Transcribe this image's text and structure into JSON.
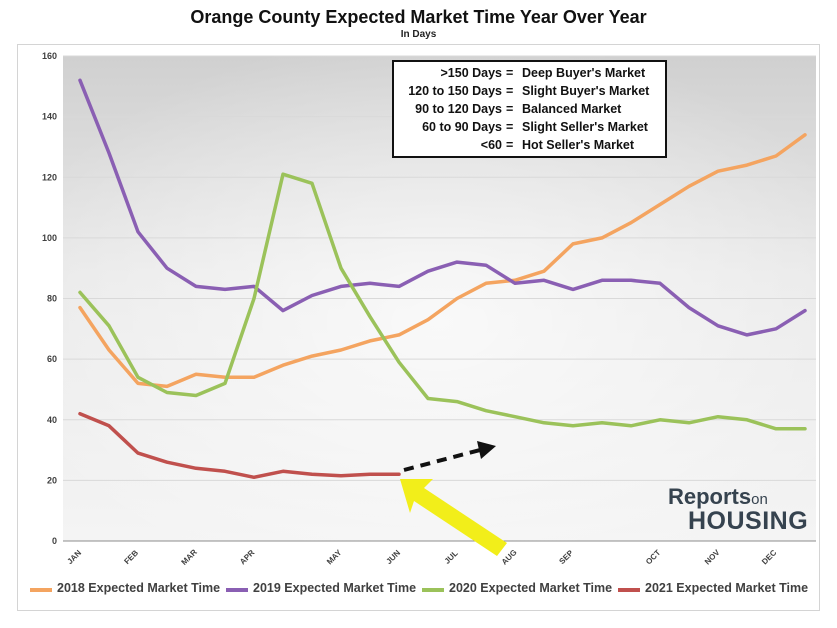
{
  "header": {
    "title": "Orange County Expected Market Time Year Over Year",
    "subtitle": "In Days"
  },
  "market_legend": [
    {
      "range": ">150 Days",
      "desc": "Deep Buyer's Market"
    },
    {
      "range": "120 to 150 Days",
      "desc": "Slight Buyer's Market"
    },
    {
      "range": "90 to 120 Days",
      "desc": "Balanced Market"
    },
    {
      "range": "60 to 90 Days",
      "desc": "Slight Seller's Market"
    },
    {
      "range": "<60",
      "desc": "Hot Seller's Market"
    }
  ],
  "logo": {
    "reports": "Reports",
    "on": "on",
    "housing": "HOUSING"
  },
  "annotations": {
    "arrow_color": "#f2ee1a",
    "dashed_arrow_color": "#111111"
  },
  "chart_data": {
    "type": "line",
    "ylim": [
      0,
      160
    ],
    "yticks": [
      0,
      20,
      40,
      60,
      80,
      100,
      120,
      140,
      160
    ],
    "month_labels": [
      "JAN",
      "FEB",
      "MAR",
      "APR",
      "MAY",
      "JUN",
      "JUL",
      "AUG",
      "SEP",
      "OCT",
      "NOV",
      "DEC"
    ],
    "grid": true,
    "legend_position": "bottom",
    "series": [
      {
        "name": "2018 Expected Market Time",
        "color": "#f4a460",
        "values": [
          77,
          63,
          52,
          51,
          55,
          54,
          54,
          58,
          61,
          63,
          66,
          68,
          73,
          80,
          85,
          86,
          89,
          98,
          100,
          105,
          111,
          117,
          122,
          124,
          127,
          134
        ]
      },
      {
        "name": "2019 Expected Market Time",
        "color": "#8a5fb3",
        "values": [
          152,
          128,
          102,
          90,
          84,
          83,
          84,
          76,
          81,
          84,
          85,
          84,
          89,
          92,
          91,
          85,
          86,
          83,
          86,
          86,
          85,
          77,
          71,
          68,
          70,
          76
        ]
      },
      {
        "name": "2020 Expected Market Time",
        "color": "#9bc25a",
        "values": [
          82,
          71,
          54,
          49,
          48,
          52,
          80,
          121,
          118,
          90,
          74,
          59,
          47,
          46,
          43,
          41,
          39,
          38,
          39,
          38,
          40,
          39,
          41,
          40,
          37,
          37
        ]
      },
      {
        "name": "2021 Expected Market Time",
        "color": "#c0504d",
        "values": [
          42,
          38,
          29,
          26,
          24,
          23,
          21,
          23,
          22,
          21.5,
          22,
          22
        ]
      }
    ]
  }
}
